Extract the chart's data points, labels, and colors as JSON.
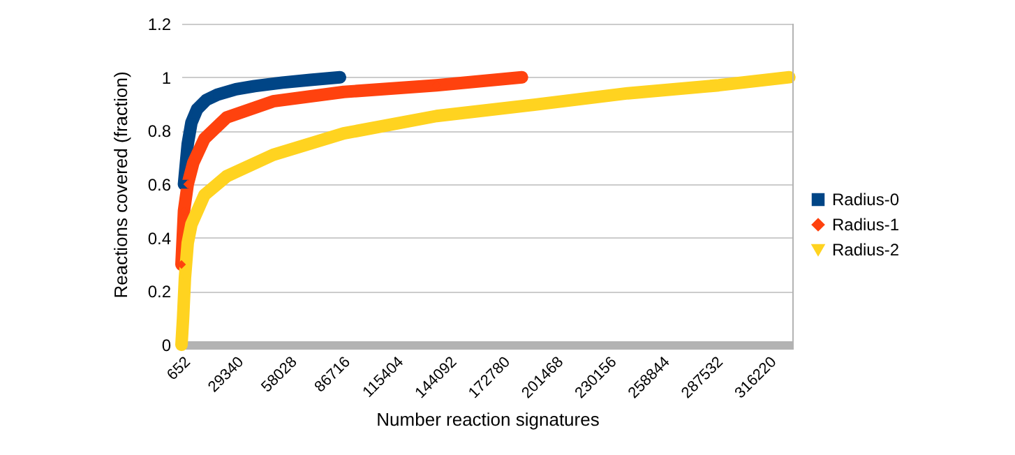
{
  "chart_data": {
    "type": "line",
    "xlabel": "Number reaction signatures",
    "ylabel": "Reactions covered (fraction)",
    "xlim": [
      652,
      330000
    ],
    "xticks": [
      652,
      29340,
      58028,
      86716,
      115404,
      144092,
      172780,
      201468,
      230156,
      258844,
      287532,
      316220
    ],
    "ylim": [
      0,
      1.2
    ],
    "yticks": [
      0,
      0.2,
      0.4,
      0.6,
      0.8,
      1,
      1.2
    ],
    "grid": "y",
    "legend": "right",
    "series": [
      {
        "name": "Radius-0",
        "color": "#004586",
        "marker": "square",
        "x": [
          2000,
          4000,
          6000,
          9000,
          14000,
          20000,
          30000,
          40000,
          55000,
          70000,
          86000
        ],
        "values": [
          0.6,
          0.75,
          0.83,
          0.88,
          0.915,
          0.935,
          0.955,
          0.967,
          0.98,
          0.99,
          1.0
        ]
      },
      {
        "name": "Radius-1",
        "color": "#ff420e",
        "marker": "diamond",
        "x": [
          652,
          2000,
          4000,
          7000,
          13000,
          25000,
          50000,
          88000,
          138000,
          184000
        ],
        "values": [
          0.3,
          0.5,
          0.6,
          0.68,
          0.77,
          0.85,
          0.91,
          0.945,
          0.97,
          1.0
        ]
      },
      {
        "name": "Radius-2",
        "color": "#ffd320",
        "marker": "triangle-down",
        "x": [
          652,
          1500,
          2500,
          4000,
          6000,
          13000,
          25000,
          50000,
          88000,
          138000,
          188000,
          241000,
          290000,
          328000
        ],
        "values": [
          0,
          0.1,
          0.25,
          0.38,
          0.45,
          0.56,
          0.63,
          0.71,
          0.79,
          0.855,
          0.895,
          0.94,
          0.97,
          1.0
        ]
      }
    ]
  }
}
